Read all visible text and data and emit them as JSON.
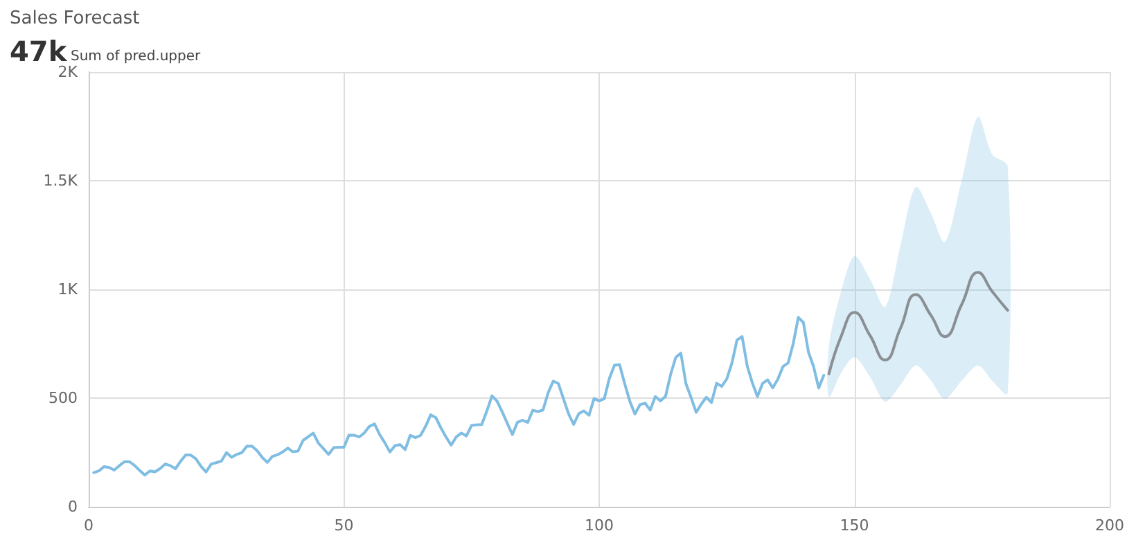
{
  "chart_data": {
    "type": "line",
    "title": "Sales Forecast",
    "subtitle": "47k",
    "annotations": [
      "Sum of pred.upper"
    ],
    "xlim": [
      0,
      200
    ],
    "xticks": [
      0,
      50,
      100,
      150,
      200
    ],
    "ylim": [
      0,
      2000
    ],
    "yticks": [
      0,
      500,
      {
        "value": 1000,
        "label": "1K"
      },
      {
        "value": 1500,
        "label": "1.5K"
      },
      {
        "value": 2000,
        "label": "2K"
      }
    ],
    "grid": true,
    "marker": "none",
    "line_style": "solid",
    "series": [
      {
        "color": "#7fbde3",
        "x": [
          1,
          2,
          3,
          4,
          5,
          6,
          7,
          8,
          9,
          10,
          11,
          12,
          13,
          14,
          15,
          16,
          17,
          18,
          19,
          20,
          21,
          22,
          23,
          24,
          25,
          26,
          27,
          28,
          29,
          30,
          31,
          32,
          33,
          34,
          35,
          36,
          37,
          38,
          39,
          40,
          41,
          42,
          43,
          44,
          45,
          46,
          47,
          48,
          49,
          50,
          51,
          52,
          53,
          54,
          55,
          56,
          57,
          58,
          59,
          60,
          61,
          62,
          63,
          64,
          65,
          66,
          67,
          68,
          69,
          70,
          71,
          72,
          73,
          74,
          75,
          76,
          77,
          78,
          79,
          80,
          81,
          82,
          83,
          84,
          85,
          86,
          87,
          88,
          89,
          90,
          91,
          92,
          93,
          94,
          95,
          96,
          97,
          98,
          99,
          100,
          101,
          102,
          103,
          104,
          105,
          106,
          107,
          108,
          109,
          110,
          111,
          112,
          113,
          114,
          115,
          116,
          117,
          118,
          119,
          120,
          121,
          122,
          123,
          124,
          125,
          126,
          127,
          128,
          129,
          130,
          131,
          132,
          133,
          134,
          135,
          136,
          137,
          138,
          139,
          140,
          141,
          142,
          143,
          144
        ],
        "values": [
          157,
          165,
          185,
          181,
          169,
          189,
          207,
          207,
          190,
          167,
          146,
          165,
          161,
          176,
          197,
          189,
          175,
          209,
          238,
          238,
          221,
          186,
          160,
          196,
          203,
          210,
          249,
          228,
          241,
          249,
          279,
          279,
          258,
          227,
          204,
          232,
          239,
          252,
          270,
          253,
          256,
          305,
          322,
          339,
          293,
          267,
          241,
          272,
          274,
          274,
          330,
          329,
          321,
          340,
          370,
          381,
          332,
          295,
          252,
          281,
          286,
          263,
          329,
          318,
          328,
          370,
          423,
          410,
          363,
          321,
          284,
          321,
          339,
          326,
          374,
          377,
          378,
          441,
          510,
          486,
          437,
          384,
          332,
          389,
          398,
          388,
          444,
          438,
          445,
          524,
          578,
          567,
          497,
          428,
          379,
          428,
          441,
          421,
          498,
          487,
          497,
          591,
          651,
          654,
          566,
          486,
          427,
          470,
          476,
          445,
          507,
          487,
          508,
          609,
          687,
          707,
          566,
          503,
          434,
          472,
          504,
          479,
          568,
          554,
          588,
          661,
          767,
          783,
          648,
          570,
          507,
          567,
          584,
          547,
          587,
          645,
          661,
          749,
          871,
          848,
          711,
          645,
          546,
          605
        ]
      },
      {
        "color": "#8a8f94",
        "x": [
          145,
          147.5,
          150,
          153,
          156,
          159,
          162,
          165,
          167.7,
          171,
          174.2,
          177,
          180
        ],
        "values": [
          611,
          790,
          894,
          790,
          675,
          820,
          976,
          880,
          783,
          930,
          1078,
          990,
          904
        ],
        "upper": [
          740,
          1000,
          1153,
          1050,
          919,
          1200,
          1471,
          1350,
          1217,
          1500,
          1794,
          1620,
          1567
        ],
        "lower": [
          505,
          620,
          688,
          600,
          484,
          560,
          650,
          580,
          497,
          580,
          650,
          580,
          522
        ]
      }
    ]
  }
}
